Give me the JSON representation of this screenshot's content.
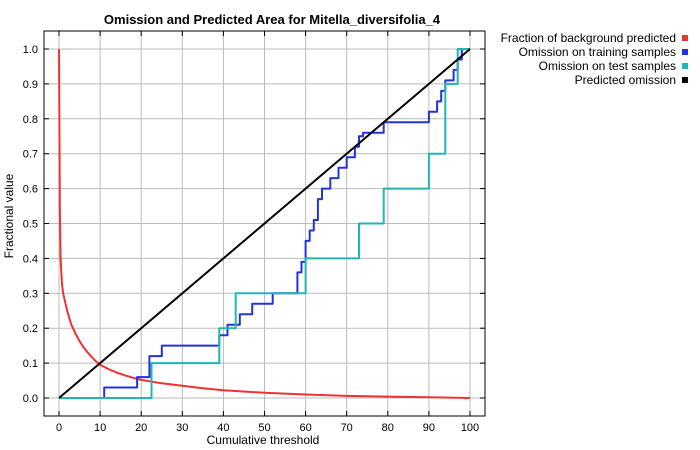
{
  "chart_data": {
    "type": "line",
    "title": "Omission and Predicted Area for Mitella_diversifolia_4",
    "xlabel": "Cumulative threshold",
    "ylabel": "Fractional value",
    "xlim": [
      0,
      100
    ],
    "ylim": [
      0,
      1
    ],
    "xticks": [
      0,
      10,
      20,
      30,
      40,
      50,
      60,
      70,
      80,
      90,
      100
    ],
    "yticks": [
      0,
      0.1,
      0.2,
      0.3,
      0.4,
      0.5,
      0.6,
      0.7,
      0.8,
      0.9,
      1.0
    ],
    "xtick_labels": [
      "0",
      "10",
      "20",
      "30",
      "40",
      "50",
      "60",
      "70",
      "80",
      "90",
      "100"
    ],
    "ytick_labels": [
      "0.0",
      "0.1",
      "0.2",
      "0.3",
      "0.4",
      "0.5",
      "0.6",
      "0.7",
      "0.8",
      "0.9",
      "1.0"
    ],
    "grid": true,
    "legend_position": "outside-top-right",
    "series": [
      {
        "name": "Fraction of background predicted",
        "color": "#ee3333",
        "points": [
          [
            0,
            1.0
          ],
          [
            0.1,
            0.78
          ],
          [
            0.2,
            0.55
          ],
          [
            0.4,
            0.4
          ],
          [
            0.7,
            0.33
          ],
          [
            1,
            0.3
          ],
          [
            2,
            0.25
          ],
          [
            3,
            0.21
          ],
          [
            4,
            0.185
          ],
          [
            5,
            0.163
          ],
          [
            6,
            0.145
          ],
          [
            7,
            0.13
          ],
          [
            8,
            0.117
          ],
          [
            9,
            0.105
          ],
          [
            10,
            0.095
          ],
          [
            12,
            0.083
          ],
          [
            14,
            0.073
          ],
          [
            16,
            0.065
          ],
          [
            18,
            0.058
          ],
          [
            20,
            0.052
          ],
          [
            25,
            0.042
          ],
          [
            30,
            0.035
          ],
          [
            35,
            0.028
          ],
          [
            40,
            0.022
          ],
          [
            50,
            0.015
          ],
          [
            60,
            0.01
          ],
          [
            70,
            0.006
          ],
          [
            80,
            0.004
          ],
          [
            90,
            0.002
          ],
          [
            100,
            0.0
          ]
        ]
      },
      {
        "name": "Omission on training samples",
        "color": "#2233dd",
        "points": [
          [
            0,
            0
          ],
          [
            11,
            0
          ],
          [
            11,
            0.03
          ],
          [
            19,
            0.03
          ],
          [
            19,
            0.06
          ],
          [
            22,
            0.06
          ],
          [
            22,
            0.12
          ],
          [
            25,
            0.12
          ],
          [
            25,
            0.15
          ],
          [
            39,
            0.15
          ],
          [
            39,
            0.18
          ],
          [
            41,
            0.18
          ],
          [
            41,
            0.21
          ],
          [
            44,
            0.21
          ],
          [
            44,
            0.24
          ],
          [
            47,
            0.24
          ],
          [
            47,
            0.27
          ],
          [
            52,
            0.27
          ],
          [
            52,
            0.3
          ],
          [
            58,
            0.3
          ],
          [
            58,
            0.36
          ],
          [
            59,
            0.36
          ],
          [
            59,
            0.39
          ],
          [
            60,
            0.39
          ],
          [
            60,
            0.45
          ],
          [
            61,
            0.45
          ],
          [
            61,
            0.48
          ],
          [
            62,
            0.48
          ],
          [
            62,
            0.51
          ],
          [
            63,
            0.51
          ],
          [
            63,
            0.57
          ],
          [
            64,
            0.57
          ],
          [
            64,
            0.6
          ],
          [
            66,
            0.6
          ],
          [
            66,
            0.63
          ],
          [
            68,
            0.63
          ],
          [
            68,
            0.66
          ],
          [
            70,
            0.66
          ],
          [
            70,
            0.69
          ],
          [
            72,
            0.69
          ],
          [
            72,
            0.72
          ],
          [
            73,
            0.72
          ],
          [
            73,
            0.75
          ],
          [
            74,
            0.75
          ],
          [
            74,
            0.76
          ],
          [
            79,
            0.76
          ],
          [
            79,
            0.79
          ],
          [
            90,
            0.79
          ],
          [
            90,
            0.82
          ],
          [
            92,
            0.82
          ],
          [
            92,
            0.85
          ],
          [
            93,
            0.85
          ],
          [
            93,
            0.88
          ],
          [
            94,
            0.88
          ],
          [
            94,
            0.91
          ],
          [
            96,
            0.91
          ],
          [
            96,
            0.94
          ],
          [
            97,
            0.94
          ],
          [
            97,
            0.97
          ],
          [
            98,
            0.97
          ],
          [
            98,
            1.0
          ],
          [
            100,
            1.0
          ]
        ]
      },
      {
        "name": "Omission on test samples",
        "color": "#22b5b5",
        "points": [
          [
            0,
            0
          ],
          [
            22.5,
            0
          ],
          [
            22.5,
            0.1
          ],
          [
            39,
            0.1
          ],
          [
            39,
            0.2
          ],
          [
            43,
            0.2
          ],
          [
            43,
            0.3
          ],
          [
            60,
            0.3
          ],
          [
            60,
            0.4
          ],
          [
            73,
            0.4
          ],
          [
            73,
            0.5
          ],
          [
            79,
            0.5
          ],
          [
            79,
            0.6
          ],
          [
            90,
            0.6
          ],
          [
            90,
            0.7
          ],
          [
            94,
            0.7
          ],
          [
            94,
            0.9
          ],
          [
            97,
            0.9
          ],
          [
            97,
            1.0
          ],
          [
            100,
            1.0
          ]
        ]
      },
      {
        "name": "Predicted omission",
        "color": "#000000",
        "points": [
          [
            0,
            0
          ],
          [
            100,
            1.0
          ]
        ]
      }
    ]
  }
}
